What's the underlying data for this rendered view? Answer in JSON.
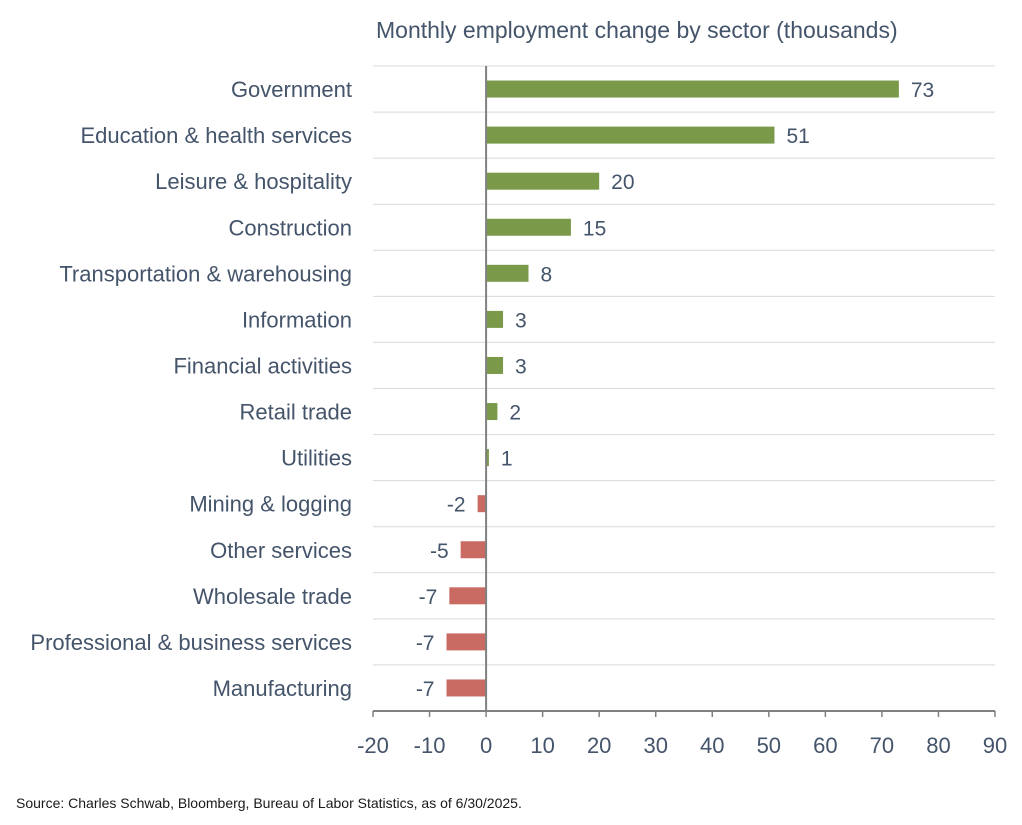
{
  "chart_data": {
    "type": "bar",
    "orientation": "horizontal",
    "title": "Monthly employment change by sector (thousands)",
    "categories": [
      "Government",
      "Education & health services",
      "Leisure & hospitality",
      "Construction",
      "Transportation & warehousing",
      "Information",
      "Financial activities",
      "Retail trade",
      "Utilities",
      "Mining & logging",
      "Other services",
      "Wholesale trade",
      "Professional & business services",
      "Manufacturing"
    ],
    "values": [
      73,
      51,
      20,
      15,
      7.5,
      3,
      3,
      2,
      0.5,
      -1.5,
      -4.5,
      -6.5,
      -7,
      -7
    ],
    "data_labels": [
      "73",
      "51",
      "20",
      "15",
      "8",
      "3",
      "3",
      "2",
      "1",
      "-2",
      "-5",
      "-7",
      "-7",
      "-7"
    ],
    "xlim": [
      -20,
      90
    ],
    "xticks": [
      -20,
      -10,
      0,
      10,
      20,
      30,
      40,
      50,
      60,
      70,
      80,
      90
    ],
    "grid": "horizontal",
    "colors": {
      "positive": "#7a9a4a",
      "negative": "#c96b63",
      "text": "#44546a",
      "grid": "#d9d9d9",
      "axis": "#808080"
    }
  },
  "source": "Source: Charles Schwab, Bloomberg, Bureau of Labor Statistics, as of 6/30/2025."
}
